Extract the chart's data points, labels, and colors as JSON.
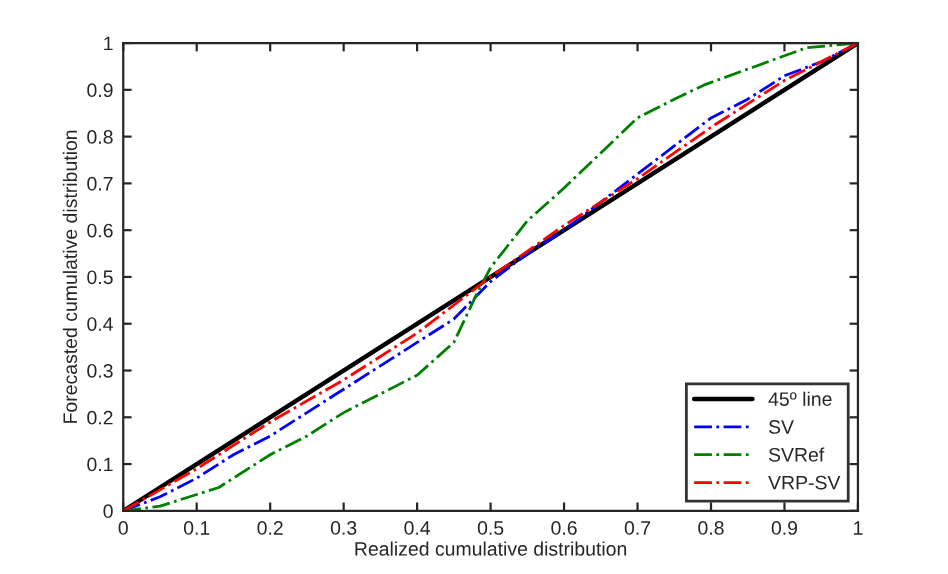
{
  "chart_data": {
    "type": "line",
    "xlabel": "Realized cumulative distribution",
    "ylabel": "Forecasted cumulative distribution",
    "xlim": [
      0,
      1
    ],
    "ylim": [
      0,
      1
    ],
    "xticks": [
      0,
      0.1,
      0.2,
      0.3,
      0.4,
      0.5,
      0.6,
      0.7,
      0.8,
      0.9,
      1
    ],
    "yticks": [
      0,
      0.1,
      0.2,
      0.3,
      0.4,
      0.5,
      0.6,
      0.7,
      0.8,
      0.9,
      1
    ],
    "grid": false,
    "legend": "bottom right",
    "marker": "none",
    "series": [
      {
        "name": "45º line",
        "color": "#000000",
        "line_style": "solid",
        "x": [
          0,
          1
        ],
        "values": [
          0,
          1
        ]
      },
      {
        "name": "SV",
        "color": "#0000ff",
        "line_style": "dashdot",
        "x": [
          0,
          0.05,
          0.1,
          0.15,
          0.2,
          0.25,
          0.3,
          0.35,
          0.4,
          0.45,
          0.5,
          0.55,
          0.6,
          0.65,
          0.7,
          0.75,
          0.8,
          0.85,
          0.9,
          0.95,
          1
        ],
        "values": [
          0,
          0.03,
          0.07,
          0.12,
          0.16,
          0.21,
          0.26,
          0.31,
          0.36,
          0.41,
          0.49,
          0.55,
          0.6,
          0.66,
          0.72,
          0.78,
          0.84,
          0.88,
          0.93,
          0.96,
          1
        ]
      },
      {
        "name": "SVRef",
        "color": "#008000",
        "line_style": "dashdot",
        "x": [
          0,
          0.05,
          0.1,
          0.13,
          0.2,
          0.25,
          0.3,
          0.35,
          0.4,
          0.45,
          0.48,
          0.5,
          0.55,
          0.6,
          0.64,
          0.7,
          0.75,
          0.79,
          0.86,
          0.93,
          1
        ],
        "values": [
          0,
          0.01,
          0.035,
          0.05,
          0.12,
          0.16,
          0.21,
          0.25,
          0.29,
          0.36,
          0.46,
          0.52,
          0.62,
          0.69,
          0.75,
          0.84,
          0.88,
          0.91,
          0.95,
          0.99,
          1
        ]
      },
      {
        "name": "VRP-SV",
        "color": "#ff0000",
        "line_style": "dashdot",
        "x": [
          0,
          0.1,
          0.2,
          0.3,
          0.4,
          0.5,
          0.6,
          0.7,
          0.8,
          0.9,
          1
        ],
        "values": [
          0,
          0.09,
          0.19,
          0.28,
          0.38,
          0.5,
          0.61,
          0.71,
          0.82,
          0.92,
          1
        ]
      }
    ]
  }
}
